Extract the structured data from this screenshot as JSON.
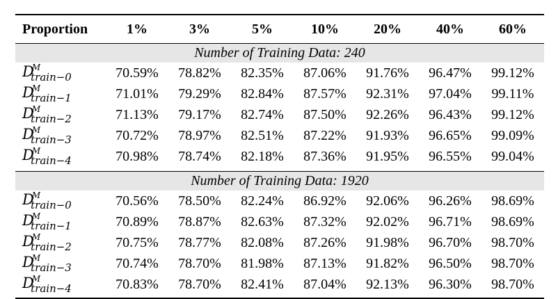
{
  "table": {
    "headers": [
      "Proportion",
      "1%",
      "3%",
      "5%",
      "10%",
      "20%",
      "40%",
      "60%"
    ],
    "sections": [
      {
        "title": "Number of Training Data: 240",
        "rows": [
          {
            "label_base": "D",
            "label_sup": "M",
            "label_sub": "train−0",
            "values": [
              "70.59%",
              "78.82%",
              "82.35%",
              "87.06%",
              "91.76%",
              "96.47%",
              "99.12%"
            ]
          },
          {
            "label_base": "D",
            "label_sup": "M",
            "label_sub": "train−1",
            "values": [
              "71.01%",
              "79.29%",
              "82.84%",
              "87.57%",
              "92.31%",
              "97.04%",
              "99.11%"
            ]
          },
          {
            "label_base": "D",
            "label_sup": "M",
            "label_sub": "train−2",
            "values": [
              "71.13%",
              "79.17%",
              "82.74%",
              "87.50%",
              "92.26%",
              "96.43%",
              "99.12%"
            ]
          },
          {
            "label_base": "D",
            "label_sup": "M",
            "label_sub": "train−3",
            "values": [
              "70.72%",
              "78.97%",
              "82.51%",
              "87.22%",
              "91.93%",
              "96.65%",
              "99.09%"
            ]
          },
          {
            "label_base": "D",
            "label_sup": "M",
            "label_sub": "train−4",
            "values": [
              "70.98%",
              "78.74%",
              "82.18%",
              "87.36%",
              "91.95%",
              "96.55%",
              "99.04%"
            ]
          }
        ]
      },
      {
        "title": "Number of Training Data: 1920",
        "rows": [
          {
            "label_base": "D",
            "label_sup": "M",
            "label_sub": "train−0",
            "values": [
              "70.56%",
              "78.50%",
              "82.24%",
              "86.92%",
              "92.06%",
              "96.26%",
              "98.69%"
            ]
          },
          {
            "label_base": "D",
            "label_sup": "M",
            "label_sub": "train−1",
            "values": [
              "70.89%",
              "78.87%",
              "82.63%",
              "87.32%",
              "92.02%",
              "96.71%",
              "98.69%"
            ]
          },
          {
            "label_base": "D",
            "label_sup": "M",
            "label_sub": "train−2",
            "values": [
              "70.75%",
              "78.77%",
              "82.08%",
              "87.26%",
              "91.98%",
              "96.70%",
              "98.70%"
            ]
          },
          {
            "label_base": "D",
            "label_sup": "M",
            "label_sub": "train−3",
            "values": [
              "70.74%",
              "78.70%",
              "81.98%",
              "87.13%",
              "91.82%",
              "96.50%",
              "98.70%"
            ]
          },
          {
            "label_base": "D",
            "label_sup": "M",
            "label_sub": "train−4",
            "values": [
              "70.83%",
              "78.70%",
              "82.41%",
              "87.04%",
              "92.13%",
              "96.30%",
              "98.70%"
            ]
          }
        ]
      }
    ]
  }
}
